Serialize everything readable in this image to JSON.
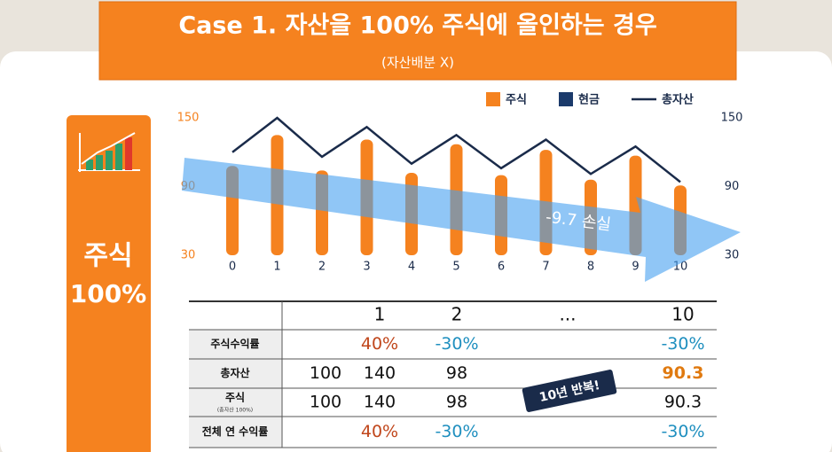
{
  "header": {
    "title": "Case 1. 자산을 100% 주식에 올인하는 경우",
    "subtitle": "(자산배분 X)"
  },
  "side_label": {
    "line1": "주식",
    "line2": "100%"
  },
  "chart_data": {
    "type": "bar",
    "categories": [
      0,
      1,
      2,
      3,
      4,
      5,
      6,
      7,
      8,
      9,
      10
    ],
    "series": [
      {
        "name": "주식",
        "color": "#f5821f",
        "values": [
          108,
          135,
          104,
          131,
          102,
          127,
          100,
          122,
          96,
          117,
          91
        ]
      },
      {
        "name": "현금",
        "color": "#1b3a6b",
        "values": [
          null,
          null,
          null,
          null,
          null,
          null,
          null,
          null,
          null,
          null,
          null
        ]
      },
      {
        "name": "총자산",
        "color": "#1a2b4a",
        "type": "line",
        "axis": "y2",
        "values": [
          120,
          150,
          116,
          142,
          110,
          135,
          106,
          131,
          101,
          125,
          94
        ]
      }
    ],
    "ylim": [
      30,
      150
    ],
    "yticks": [
      30,
      90,
      150
    ],
    "y2lim": [
      30,
      150
    ],
    "y2ticks": [
      30,
      90,
      150
    ],
    "annotation": "-9.7 손실",
    "legend": "top-right"
  },
  "table": {
    "header": [
      null,
      "1",
      "2",
      "...",
      "10"
    ],
    "rows": [
      {
        "label": "주식수익률",
        "cells": [
          null,
          "40%",
          "-30%",
          null,
          "-30%"
        ]
      },
      {
        "label": "총자산",
        "cells": [
          100,
          140,
          98,
          null,
          90.3
        ]
      },
      {
        "label": "주식",
        "sublabel": "(총자산 100%)",
        "cells": [
          100,
          140,
          98,
          null,
          90.3
        ]
      },
      {
        "label": "전체 연 수익률",
        "cells": [
          null,
          "40%",
          "-30%",
          null,
          "-30%"
        ]
      }
    ]
  },
  "stamp": "10년 반복!"
}
